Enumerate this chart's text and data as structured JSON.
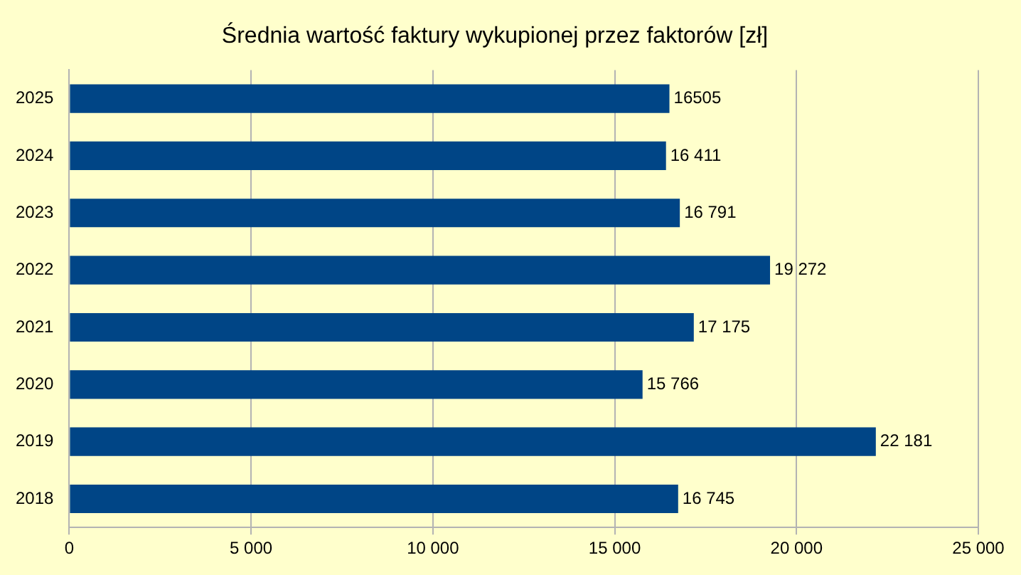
{
  "chart_data": {
    "type": "bar",
    "orientation": "horizontal",
    "title": "Średnia wartość faktury wykupionej przez faktorów [zł]",
    "categories": [
      "2025",
      "2024",
      "2023",
      "2022",
      "2021",
      "2020",
      "2019",
      "2018"
    ],
    "values": [
      16505,
      16411,
      16791,
      19272,
      17175,
      15766,
      22181,
      16745
    ],
    "value_labels": [
      "16505",
      "16 411",
      "16 791",
      "19 272",
      "17 175",
      "15 766",
      "22 181",
      "16 745"
    ],
    "color": "#004586",
    "xlim": [
      0,
      25000
    ],
    "xticks": [
      0,
      {
        "value": 5000,
        "label": "5 000"
      },
      {
        "value": 10000,
        "label": "10 000"
      },
      {
        "value": 15000,
        "label": "15 000"
      },
      {
        "value": 20000,
        "label": "20 000"
      },
      {
        "value": 25000,
        "label": "25 000"
      }
    ],
    "grid": "x",
    "legend": false
  }
}
